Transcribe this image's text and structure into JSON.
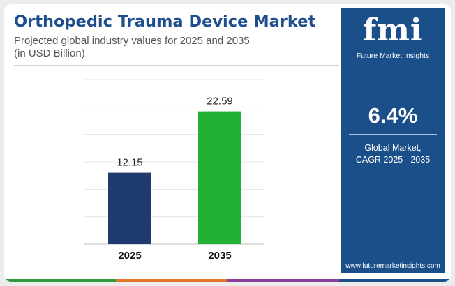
{
  "header": {
    "title": "Orthopedic Trauma Device Market",
    "subtitle_line1": "Projected global industry values for 2025 and 2035",
    "subtitle_line2": "(in USD Billion)"
  },
  "chart_data": {
    "type": "bar",
    "title": "Orthopedic Trauma Device Market",
    "subtitle": "Projected global industry values for 2025 and 2035 (in USD Billion)",
    "categories": [
      "2025",
      "2035"
    ],
    "values": [
      12.15,
      22.59
    ],
    "value_labels": [
      "12.15",
      "22.59"
    ],
    "bar_colors": [
      "#1f3a6e",
      "#22b233"
    ],
    "ylim": [
      0,
      28
    ],
    "grid": true,
    "legend": "none"
  },
  "sidebar": {
    "logo_text": "fmi",
    "logo_subtitle": "Future Market Insights",
    "stat_value": "6.4%",
    "stat_label_line1": "Global Market,",
    "stat_label_line2": "CAGR 2025 - 2035",
    "url": "www.futuremarketinsights.com",
    "background": "#1b4f8a"
  },
  "footer_colors": [
    "#2e9c3a",
    "#e2752a",
    "#8a3fa0",
    "#1b4f8a"
  ]
}
